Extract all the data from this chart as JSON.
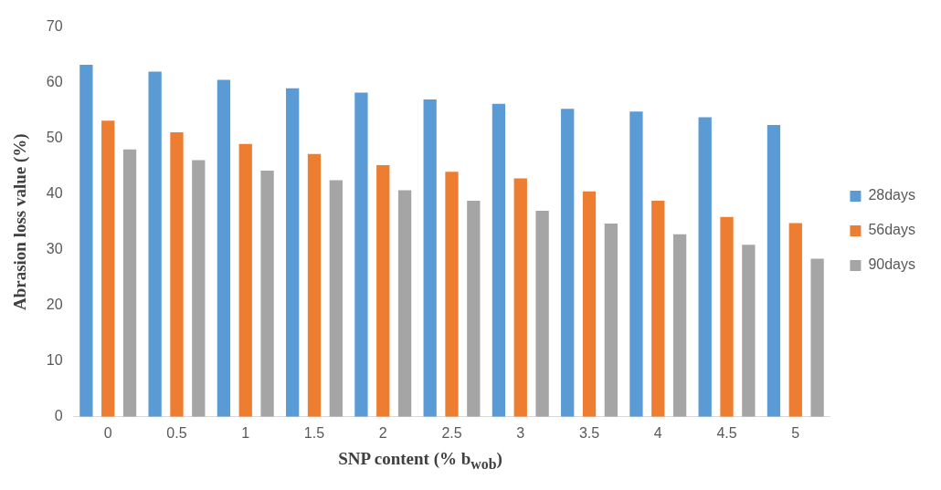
{
  "chart_data": {
    "type": "bar",
    "xlabel": "SNP content (% b$_{wob}$)",
    "ylabel": "Abrasion loss value (%)",
    "categories": [
      "0",
      "0.5",
      "1",
      "1.5",
      "2",
      "2.5",
      "3",
      "3.5",
      "4",
      "4.5",
      "5"
    ],
    "series": [
      {
        "name": "28days",
        "color": "#5b9bd5",
        "values": [
          63.2,
          62,
          60.5,
          59,
          58.2,
          57,
          56.2,
          55.3,
          54.8,
          53.8,
          52.4
        ]
      },
      {
        "name": "56days",
        "color": "#ed7d31",
        "values": [
          53.2,
          51.1,
          49,
          47.2,
          45.2,
          44,
          42.8,
          40.5,
          38.8,
          35.9,
          34.8
        ]
      },
      {
        "name": "90days",
        "color": "#a5a5a5",
        "values": [
          48,
          46.1,
          44.2,
          42.5,
          40.7,
          38.8,
          37,
          34.7,
          32.8,
          30.9,
          28.4
        ]
      }
    ],
    "ylim": [
      0,
      70
    ],
    "yticks": [
      0,
      10,
      20,
      30,
      40,
      50,
      60,
      70
    ],
    "grid": false,
    "legend": "right"
  }
}
